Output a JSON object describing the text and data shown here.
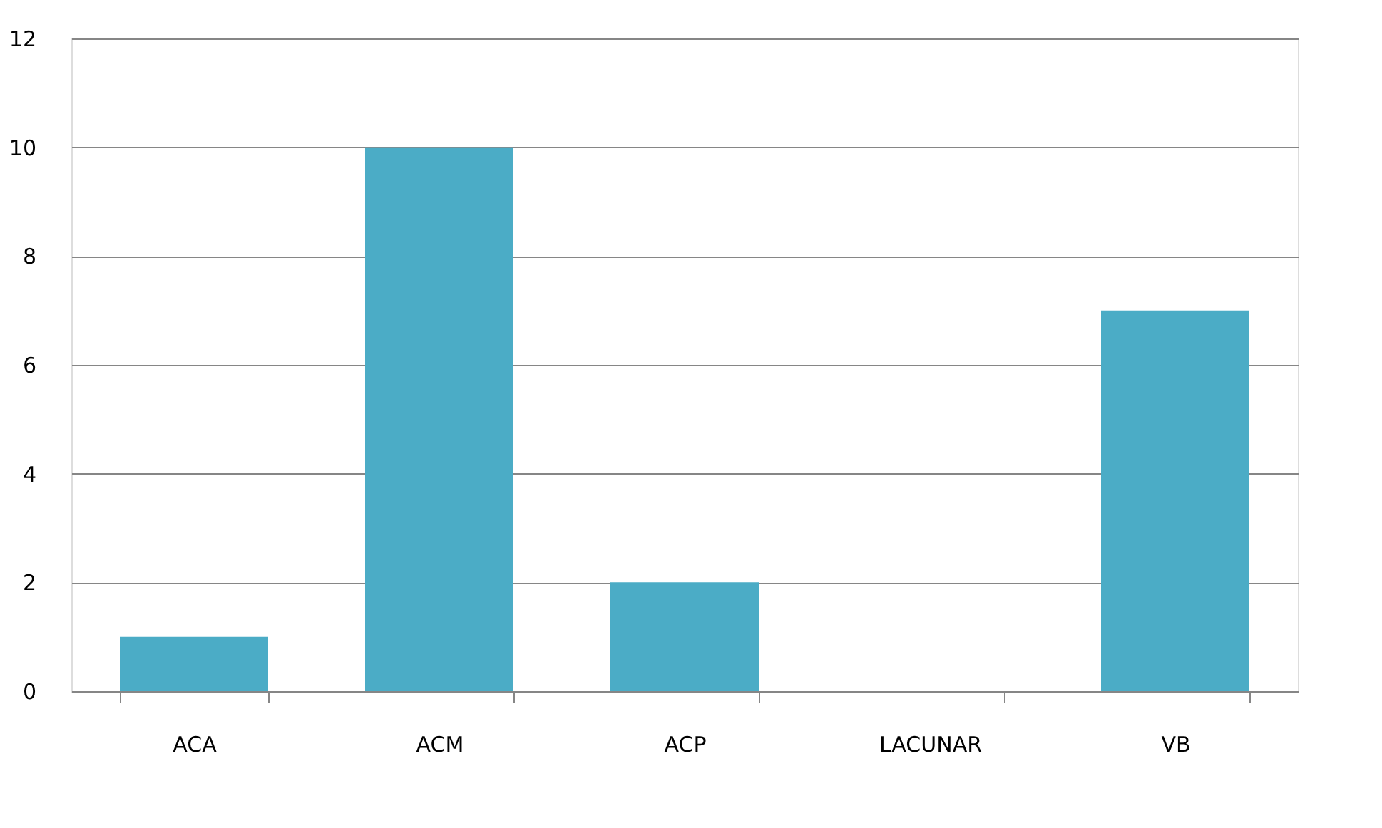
{
  "chart_data": {
    "type": "bar",
    "categories": [
      "ACA",
      "ACM",
      "ACP",
      "LACUNAR",
      "VB"
    ],
    "values": [
      1,
      10,
      2,
      0,
      7
    ],
    "color": "#4bacc6",
    "ylim": [
      0,
      12
    ],
    "yticks": [
      0,
      2,
      4,
      6,
      8,
      10,
      12
    ],
    "grid": "y"
  }
}
